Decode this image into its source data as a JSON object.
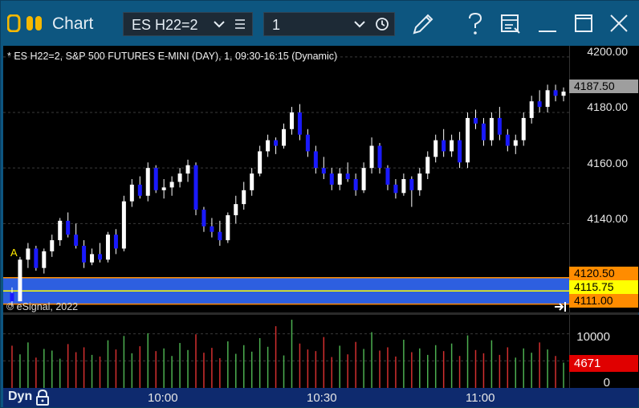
{
  "titlebar": {
    "title": "Chart",
    "symbol": "ES H22=2",
    "interval": "1",
    "icons": [
      "esignal-logo-icon",
      "chevron-down-icon",
      "list-icon",
      "chevron-down-icon",
      "clock-icon",
      "pencil-icon",
      "help-icon",
      "layout-icon",
      "minimize-icon",
      "maximize-icon",
      "close-icon"
    ],
    "accent": "#0d5680"
  },
  "chart": {
    "info": "* ES H22=2, S&P 500 FUTURES E-MINI (DAY), 1, 09:30-16:15 (Dynamic)",
    "copyright": "© eSignal, 2022",
    "alert_label": "A",
    "price_labels": [
      "4200.00",
      "4180.00",
      "4160.00",
      "4140.00"
    ],
    "price_tags": {
      "last": "4187.50",
      "upper": "4120.50",
      "middle": "4115.75",
      "lower": "4111.00"
    },
    "volume_labels": {
      "top": "10000",
      "last": "4671",
      "zero": "0"
    },
    "time_labels": [
      "10:00",
      "10:30",
      "11:00"
    ],
    "status": "Dyn",
    "colors": {
      "up": "#ffffff",
      "down": "#1a1aff",
      "vol_up": "#4caf50",
      "vol_down": "#d32f2f",
      "band": "#2d5fe0",
      "last_tag": "#9e9e9e",
      "orange": "#ff8c00",
      "yellow": "#ffff00",
      "vol_tag": "#e00000"
    }
  },
  "chart_data": {
    "type": "candlestick",
    "ylim": [
      4108,
      4204
    ],
    "volume_ylim": [
      0,
      13500
    ],
    "bands": {
      "upper": 4120.5,
      "middle": 4115.75,
      "lower": 4111.0
    },
    "candles": [
      [
        4115,
        4117,
        4110,
        4112
      ],
      [
        4112,
        4128,
        4112,
        4127
      ],
      [
        4127,
        4133,
        4124,
        4131
      ],
      [
        4131,
        4132,
        4123,
        4124
      ],
      [
        4124,
        4131,
        4122,
        4130
      ],
      [
        4130,
        4136,
        4128,
        4134
      ],
      [
        4134,
        4142,
        4132,
        4141
      ],
      [
        4141,
        4144,
        4135,
        4136
      ],
      [
        4136,
        4140,
        4131,
        4132
      ],
      [
        4132,
        4134,
        4124,
        4126
      ],
      [
        4126,
        4131,
        4125,
        4129
      ],
      [
        4129,
        4133,
        4126,
        4127
      ],
      [
        4127,
        4137,
        4126,
        4136
      ],
      [
        4136,
        4138,
        4129,
        4131
      ],
      [
        4131,
        4150,
        4130,
        4148
      ],
      [
        4148,
        4156,
        4146,
        4154
      ],
      [
        4154,
        4157,
        4149,
        4150
      ],
      [
        4150,
        4162,
        4148,
        4160
      ],
      [
        4160,
        4161,
        4151,
        4152
      ],
      [
        4152,
        4156,
        4149,
        4153
      ],
      [
        4153,
        4157,
        4150,
        4155
      ],
      [
        4155,
        4160,
        4153,
        4158
      ],
      [
        4158,
        4163,
        4155,
        4161
      ],
      [
        4161,
        4162,
        4143,
        4145
      ],
      [
        4145,
        4146,
        4137,
        4139
      ],
      [
        4139,
        4142,
        4135,
        4137
      ],
      [
        4137,
        4141,
        4132,
        4134
      ],
      [
        4134,
        4144,
        4133,
        4143
      ],
      [
        4143,
        4150,
        4140,
        4147
      ],
      [
        4147,
        4155,
        4145,
        4152
      ],
      [
        4152,
        4160,
        4150,
        4158
      ],
      [
        4158,
        4168,
        4157,
        4166
      ],
      [
        4166,
        4172,
        4164,
        4170
      ],
      [
        4170,
        4171,
        4165,
        4168
      ],
      [
        4168,
        4176,
        4167,
        4174
      ],
      [
        4174,
        4182,
        4172,
        4180
      ],
      [
        4180,
        4183,
        4170,
        4172
      ],
      [
        4172,
        4174,
        4164,
        4166
      ],
      [
        4166,
        4168,
        4158,
        4160
      ],
      [
        4160,
        4164,
        4156,
        4158
      ],
      [
        4158,
        4160,
        4152,
        4154
      ],
      [
        4154,
        4160,
        4152,
        4158
      ],
      [
        4158,
        4162,
        4155,
        4156
      ],
      [
        4156,
        4158,
        4150,
        4152
      ],
      [
        4152,
        4162,
        4151,
        4160
      ],
      [
        4160,
        4171,
        4158,
        4168
      ],
      [
        4168,
        4169,
        4158,
        4160
      ],
      [
        4160,
        4161,
        4152,
        4154
      ],
      [
        4154,
        4156,
        4149,
        4151
      ],
      [
        4151,
        4158,
        4150,
        4156
      ],
      [
        4156,
        4157,
        4146,
        4152
      ],
      [
        4152,
        4160,
        4150,
        4158
      ],
      [
        4158,
        4166,
        4156,
        4164
      ],
      [
        4164,
        4172,
        4162,
        4170
      ],
      [
        4170,
        4174,
        4164,
        4166
      ],
      [
        4166,
        4172,
        4164,
        4170
      ],
      [
        4170,
        4173,
        4160,
        4162
      ],
      [
        4162,
        4180,
        4160,
        4178
      ],
      [
        4178,
        4181,
        4174,
        4176
      ],
      [
        4176,
        4178,
        4168,
        4170
      ],
      [
        4170,
        4180,
        4168,
        4178
      ],
      [
        4178,
        4182,
        4170,
        4172
      ],
      [
        4172,
        4174,
        4166,
        4168
      ],
      [
        4168,
        4172,
        4165,
        4170
      ],
      [
        4170,
        4180,
        4168,
        4178
      ],
      [
        4178,
        4186,
        4176,
        4184
      ],
      [
        4184,
        4188,
        4180,
        4182
      ],
      [
        4182,
        4190,
        4180,
        4188
      ],
      [
        4188,
        4190,
        4184,
        4186
      ],
      [
        4186,
        4189,
        4184,
        4187.5
      ]
    ],
    "volume": [
      7800,
      6200,
      8400,
      5600,
      7200,
      6900,
      5400,
      8100,
      6600,
      7500,
      6100,
      5800,
      8800,
      7100,
      9600,
      6400,
      7700,
      10100,
      6800,
      7300,
      5900,
      8300,
      7000,
      9900,
      6500,
      7400,
      5500,
      8600,
      6300,
      7900,
      6700,
      9200,
      7600,
      11400,
      6000,
      12600,
      8200,
      7100,
      6800,
      9400,
      5700,
      7800,
      6200,
      8500,
      7200,
      10300,
      6900,
      7500,
      5800,
      8900,
      6600,
      7300,
      6100,
      7900,
      6800,
      8200,
      5900,
      9700,
      7000,
      6400,
      8800,
      6100,
      7500,
      5600,
      7300,
      6500,
      8400,
      7100,
      5900,
      4671
    ]
  }
}
